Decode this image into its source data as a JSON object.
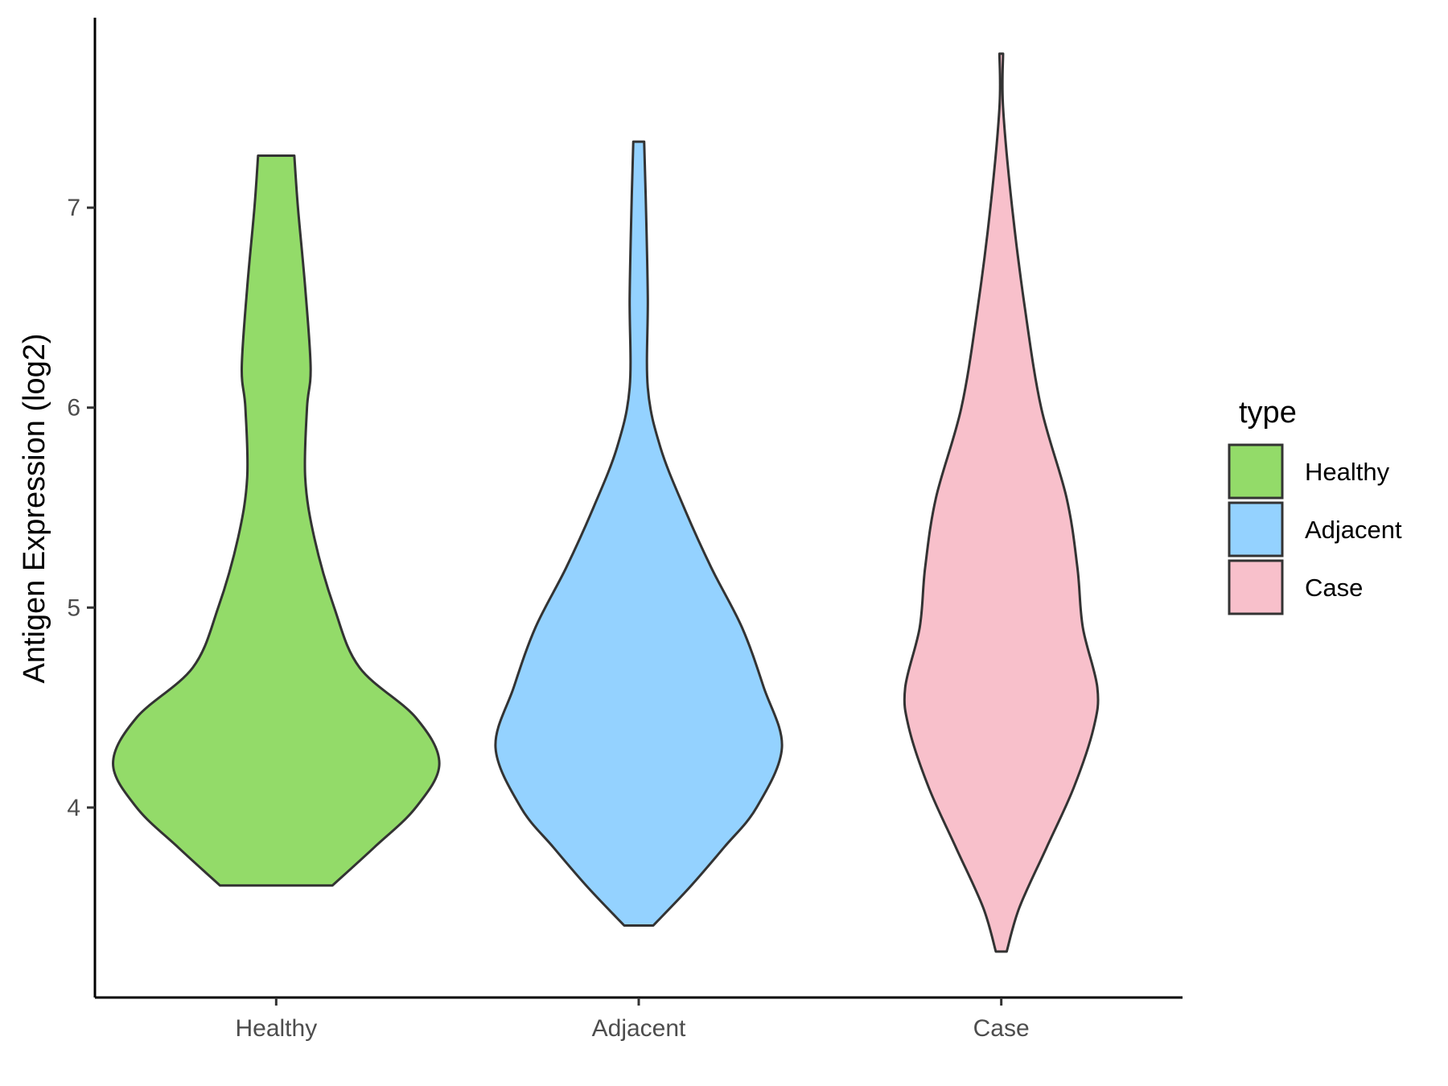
{
  "chart_data": {
    "type": "violin",
    "title": "",
    "xlabel": "",
    "ylabel": "Antigen Expression (log2)",
    "ylim": [
      3.05,
      7.95
    ],
    "y_ticks": [
      4,
      5,
      6,
      7
    ],
    "categories": [
      "Healthy",
      "Adjacent",
      "Case"
    ],
    "grid": false,
    "legend": {
      "title": "type",
      "position": "right",
      "entries": [
        "Healthy",
        "Adjacent",
        "Case"
      ]
    },
    "series": [
      {
        "name": "Healthy",
        "color": "#93DB69",
        "min": 3.61,
        "max": 7.26,
        "profile": [
          [
            3.61,
            0.31
          ],
          [
            3.8,
            0.54
          ],
          [
            4.0,
            0.77
          ],
          [
            4.22,
            0.9
          ],
          [
            4.45,
            0.77
          ],
          [
            4.7,
            0.46
          ],
          [
            5.0,
            0.32
          ],
          [
            5.35,
            0.21
          ],
          [
            5.65,
            0.16
          ],
          [
            6.0,
            0.17
          ],
          [
            6.2,
            0.19
          ],
          [
            6.6,
            0.16
          ],
          [
            7.0,
            0.12
          ],
          [
            7.26,
            0.1
          ]
        ]
      },
      {
        "name": "Adjacent",
        "color": "#94D2FF",
        "min": 3.41,
        "max": 7.33,
        "profile": [
          [
            3.41,
            0.08
          ],
          [
            3.6,
            0.28
          ],
          [
            3.8,
            0.47
          ],
          [
            4.0,
            0.65
          ],
          [
            4.3,
            0.79
          ],
          [
            4.6,
            0.69
          ],
          [
            4.9,
            0.57
          ],
          [
            5.2,
            0.4
          ],
          [
            5.5,
            0.25
          ],
          [
            5.8,
            0.12
          ],
          [
            6.1,
            0.05
          ],
          [
            6.55,
            0.05
          ],
          [
            7.0,
            0.04
          ],
          [
            7.33,
            0.03
          ]
        ]
      },
      {
        "name": "Case",
        "color": "#F8C0CB",
        "min": 3.28,
        "max": 7.77,
        "profile": [
          [
            3.28,
            0.03
          ],
          [
            3.5,
            0.1
          ],
          [
            3.8,
            0.25
          ],
          [
            4.1,
            0.4
          ],
          [
            4.4,
            0.51
          ],
          [
            4.6,
            0.53
          ],
          [
            4.9,
            0.45
          ],
          [
            5.2,
            0.42
          ],
          [
            5.55,
            0.36
          ],
          [
            6.0,
            0.22
          ],
          [
            6.5,
            0.13
          ],
          [
            7.0,
            0.06
          ],
          [
            7.5,
            0.01
          ],
          [
            7.77,
            0.01
          ]
        ]
      }
    ]
  }
}
